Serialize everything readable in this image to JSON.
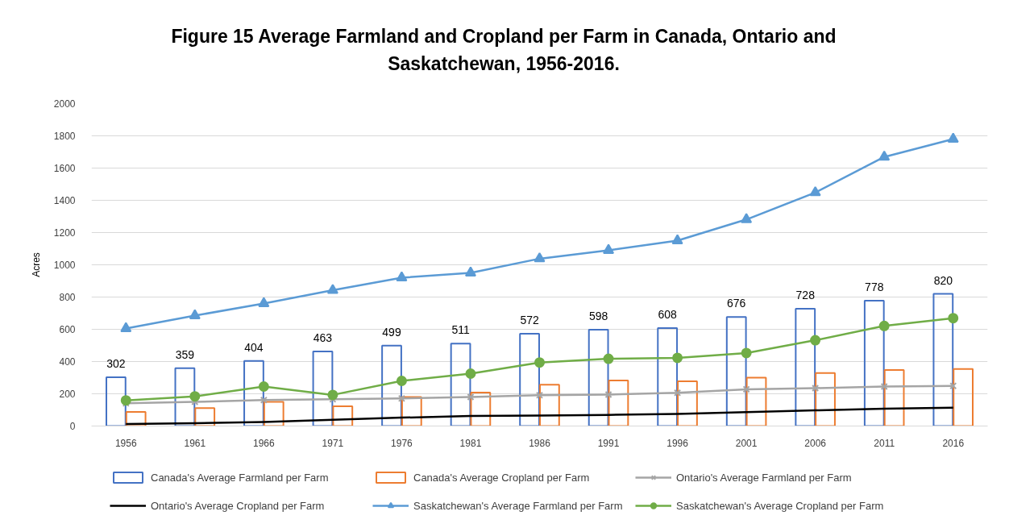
{
  "chart_data": {
    "type": "bar",
    "title": "Figure 15 Average Farmland and Cropland per Farm in Canada, Ontario and Saskatchewan, 1956-2016.",
    "ylabel": "Acres",
    "categories": [
      "1956",
      "1961",
      "1966",
      "1971",
      "1976",
      "1981",
      "1986",
      "1991",
      "1996",
      "2001",
      "2006",
      "2011",
      "2016"
    ],
    "ylim": [
      0,
      2000
    ],
    "yticks": [
      0,
      200,
      400,
      600,
      800,
      1000,
      1200,
      1400,
      1600,
      1800,
      2000
    ],
    "grid": "y",
    "legend": "bottom",
    "line_style": "solid",
    "series": [
      {
        "name": "Canada's Average Farmland per Farm",
        "color": "#4472c4",
        "values": [
          302,
          359,
          404,
          463,
          499,
          511,
          572,
          598,
          608,
          676,
          728,
          778,
          820
        ],
        "value_labels": [
          "302",
          "359",
          "404",
          "463",
          "499",
          "511",
          "572",
          "598",
          "608",
          "676",
          "728",
          "778",
          "820"
        ]
      },
      {
        "name": "Canada's Average Cropland per Farm",
        "color": "#ed7d31",
        "values": [
          88,
          111,
          150,
          123,
          180,
          207,
          256,
          283,
          277,
          300,
          329,
          348,
          354
        ]
      },
      {
        "name": "Ontario's Average Farmland per Farm",
        "type": "line",
        "marker": "cross",
        "color": "#a5a5a5",
        "values": [
          141,
          150,
          161,
          166,
          171,
          180,
          191,
          195,
          206,
          228,
          235,
          245,
          249
        ]
      },
      {
        "name": "Ontario's Average Cropland per Farm",
        "type": "line",
        "marker": "none",
        "color": "#000000",
        "values": [
          13,
          18,
          25,
          39,
          52,
          62,
          65,
          69,
          75,
          86,
          97,
          108,
          114
        ]
      },
      {
        "name": "Saskatchewan's Average Farmland per Farm",
        "type": "line",
        "marker": "triangle",
        "color": "#5b9bd5",
        "values": [
          605,
          685,
          760,
          842,
          920,
          950,
          1038,
          1090,
          1150,
          1281,
          1448,
          1669,
          1780
        ]
      },
      {
        "name": "Saskatchewan's Average Cropland per Farm",
        "type": "line",
        "marker": "circle",
        "color": "#70ad47",
        "values": [
          159,
          184,
          245,
          193,
          280,
          325,
          394,
          417,
          423,
          453,
          532,
          621,
          669
        ]
      }
    ]
  }
}
